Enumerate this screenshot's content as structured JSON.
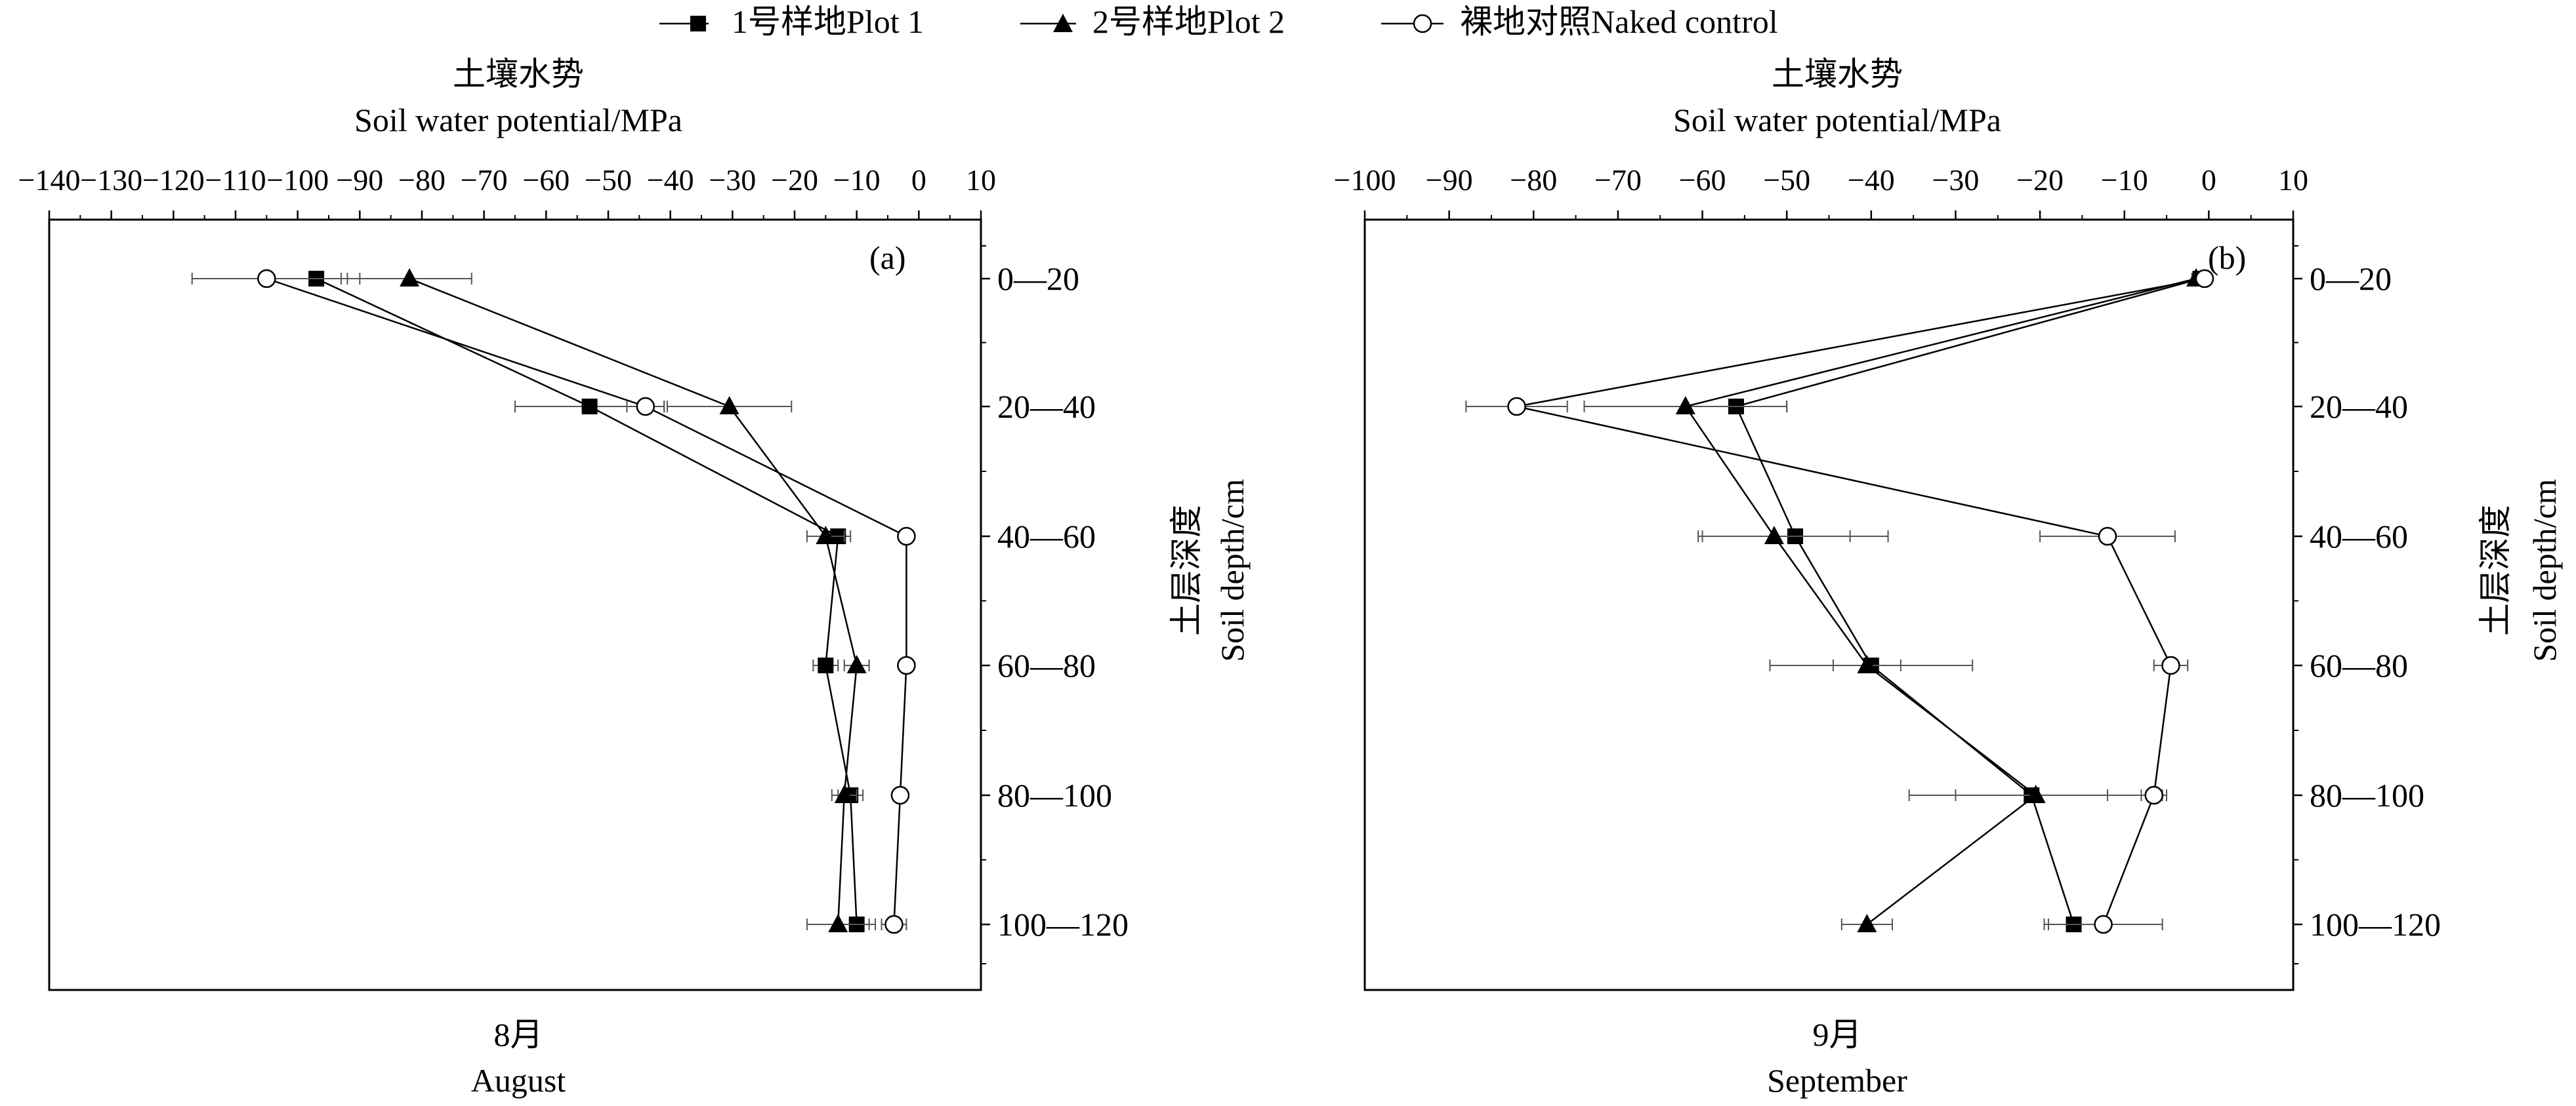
{
  "legend": {
    "items": [
      {
        "label": "1号样地Plot 1",
        "marker": "square-filled"
      },
      {
        "label": "2号样地Plot 2",
        "marker": "triangle-filled"
      },
      {
        "label": "裸地对照Naked control",
        "marker": "circle-open"
      }
    ]
  },
  "chart_data": [
    {
      "type": "line",
      "panel_label": "(a)",
      "title_cn": "土壤水势",
      "title_en": "Soil water potential/MPa",
      "xlabel": "Soil water potential/MPa",
      "ylabel_cn": "土层深度",
      "ylabel_en": "Soil depth/cm",
      "month_cn": "8月",
      "month_en": "August",
      "xlim": [
        -140,
        10
      ],
      "xticks": [
        -140,
        -130,
        -120,
        -110,
        -100,
        -90,
        -80,
        -70,
        -60,
        -50,
        -40,
        -30,
        -20,
        -10,
        0,
        10
      ],
      "xtick_labels": [
        "−140",
        "−130",
        "−120",
        "−110",
        "−100",
        "−90",
        "−80",
        "−70",
        "−60",
        "−50",
        "−40",
        "−30",
        "−20",
        "−10",
        "0",
        "10"
      ],
      "categories": [
        "0—20",
        "20—40",
        "40—60",
        "60—80",
        "80—100",
        "100—120"
      ],
      "series": [
        {
          "name": "1号样地Plot 1",
          "marker": "square-filled",
          "values": [
            -97,
            -53,
            -13,
            -15,
            -11,
            -10
          ],
          "errors": [
            7,
            12,
            2,
            2,
            2,
            3
          ]
        },
        {
          "name": "2号样地Plot 2",
          "marker": "triangle-filled",
          "values": [
            -82,
            -30.5,
            -15,
            -10,
            -12,
            -13
          ],
          "errors": [
            10,
            10,
            3,
            2,
            2,
            5
          ]
        },
        {
          "name": "裸地对照Naked control",
          "marker": "circle-open",
          "values": [
            -105,
            -44,
            -2,
            -2,
            -3,
            -4
          ],
          "errors": [
            12,
            3,
            1,
            0.5,
            0.5,
            2
          ]
        }
      ]
    },
    {
      "type": "line",
      "panel_label": "(b)",
      "title_cn": "土壤水势",
      "title_en": "Soil water potential/MPa",
      "xlabel": "Soil water potential/MPa",
      "ylabel_cn": "土层深度",
      "ylabel_en": "Soil depth/cm",
      "month_cn": "9月",
      "month_en": "September",
      "xlim": [
        -100,
        10
      ],
      "xticks": [
        -100,
        -90,
        -80,
        -70,
        -60,
        -50,
        -40,
        -30,
        -20,
        -10,
        0,
        10
      ],
      "xtick_labels": [
        "−100",
        "−90",
        "−80",
        "−70",
        "−60",
        "−50",
        "−40",
        "−30",
        "−20",
        "−10",
        "0",
        "10"
      ],
      "categories": [
        "0—20",
        "20—40",
        "40—60",
        "60—80",
        "80—100",
        "100—120"
      ],
      "series": [
        {
          "name": "1号样地Plot 1",
          "marker": "square-filled",
          "values": [
            -1,
            -56,
            -49,
            -40,
            -21,
            -16
          ],
          "errors": [
            0.5,
            6,
            11,
            12,
            9,
            3
          ]
        },
        {
          "name": "2号样地Plot 2",
          "marker": "triangle-filled",
          "values": [
            -1.5,
            -62,
            -51.5,
            -40.5,
            -20.5,
            -40.5
          ],
          "errors": [
            0.5,
            12,
            9,
            4,
            15,
            3
          ]
        },
        {
          "name": "裸地对照Naked control",
          "marker": "circle-open",
          "values": [
            -0.5,
            -82,
            -12,
            -4.5,
            -6.5,
            -12.5
          ],
          "errors": [
            0.5,
            6,
            8,
            2,
            1.5,
            7
          ]
        }
      ]
    }
  ]
}
